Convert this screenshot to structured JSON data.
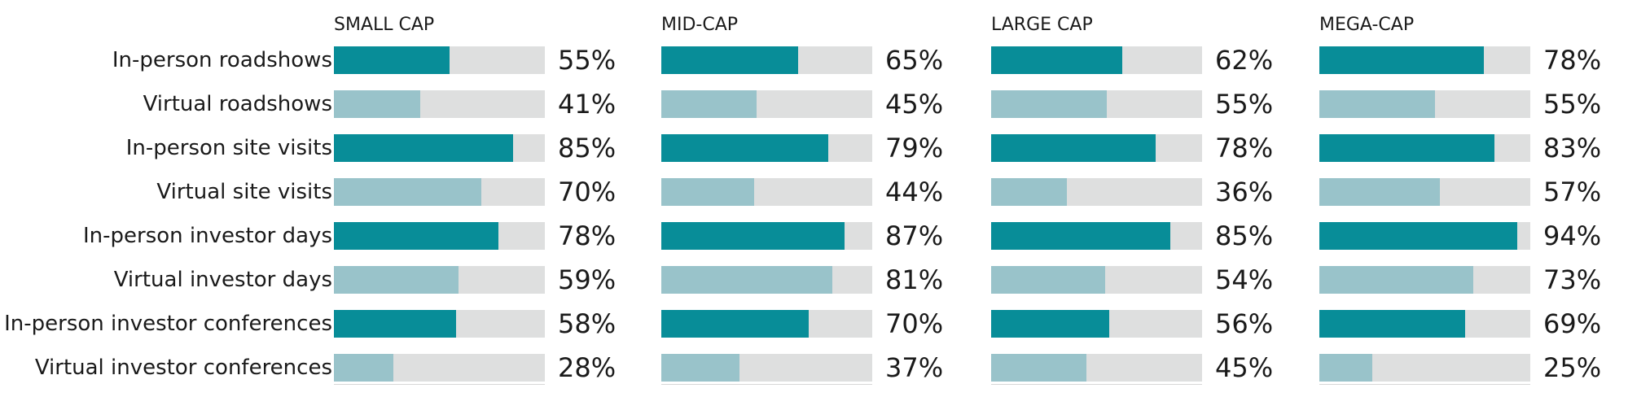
{
  "chart_data": {
    "type": "bar",
    "orientation": "horizontal",
    "xlim": [
      0,
      100
    ],
    "categories": [
      "In-person roadshows",
      "Virtual roadshows",
      "In-person site visits",
      "Virtual site visits",
      "In-person investor days",
      "Virtual investor days",
      "In-person investor conferences",
      "Virtual investor conferences"
    ],
    "colors": {
      "in_person": "#088d98",
      "virtual": "#99c3ca",
      "track": "#dedfdf"
    },
    "panels": [
      {
        "title": "SMALL CAP",
        "values": [
          55,
          41,
          85,
          70,
          78,
          59,
          58,
          28
        ],
        "labels": [
          "55%",
          "41%",
          "85%",
          "70%",
          "78%",
          "59%",
          "58%",
          "28%"
        ]
      },
      {
        "title": "MID-CAP",
        "values": [
          65,
          45,
          79,
          44,
          87,
          81,
          70,
          37
        ],
        "labels": [
          "65%",
          "45%",
          "79%",
          "44%",
          "87%",
          "81%",
          "70%",
          "37%"
        ]
      },
      {
        "title": "LARGE CAP",
        "values": [
          62,
          55,
          78,
          36,
          85,
          54,
          56,
          45
        ],
        "labels": [
          "62%",
          "55%",
          "78%",
          "36%",
          "85%",
          "54%",
          "56%",
          "45%"
        ]
      },
      {
        "title": "MEGA-CAP",
        "values": [
          78,
          55,
          83,
          57,
          94,
          73,
          69,
          25
        ],
        "labels": [
          "78%",
          "55%",
          "83%",
          "57%",
          "94%",
          "73%",
          "69%",
          "25%"
        ]
      }
    ]
  }
}
